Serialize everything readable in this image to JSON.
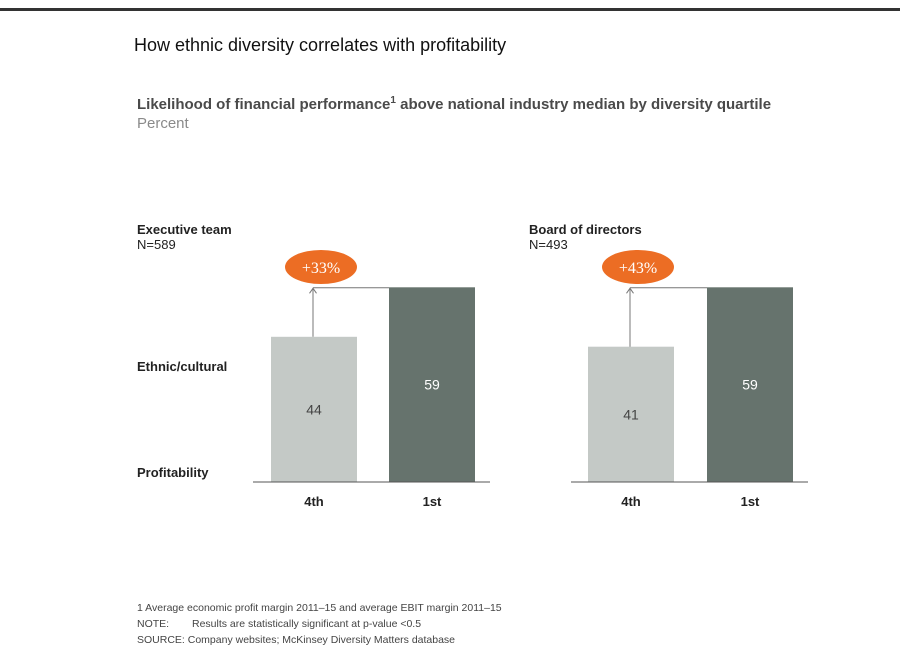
{
  "title": "How ethnic diversity correlates with profitability",
  "subtitle": {
    "text": "Likelihood of financial performance",
    "sup": "1",
    "text_after": " above national industry median by diversity quartile",
    "unit": "Percent"
  },
  "row_labels": {
    "top": "Ethnic/cultural",
    "bottom": "Profitability"
  },
  "colors": {
    "bar_4th": "#c4c9c6",
    "bar_1st": "#66736d",
    "badge": "#ec6d24",
    "axis": "#555555",
    "label_dark_bar": "#ffffff",
    "label_light_bar": "#444444"
  },
  "chart_data": [
    {
      "type": "bar",
      "panel_title": "Executive team",
      "n_label": "N=589",
      "categories": [
        "4th",
        "1st"
      ],
      "values": [
        44,
        59
      ],
      "uplift_label": "+33%"
    },
    {
      "type": "bar",
      "panel_title": "Board of directors",
      "n_label": "N=493",
      "categories": [
        "4th",
        "1st"
      ],
      "values": [
        41,
        59
      ],
      "uplift_label": "+43%"
    }
  ],
  "footnotes": {
    "note1": "1 Average economic profit margin 2011–15 and average EBIT margin 2011–15",
    "note_label": "NOTE:",
    "note_text": "Results are statistically significant at p-value <0.5",
    "source": "SOURCE: Company websites; McKinsey Diversity Matters database"
  }
}
